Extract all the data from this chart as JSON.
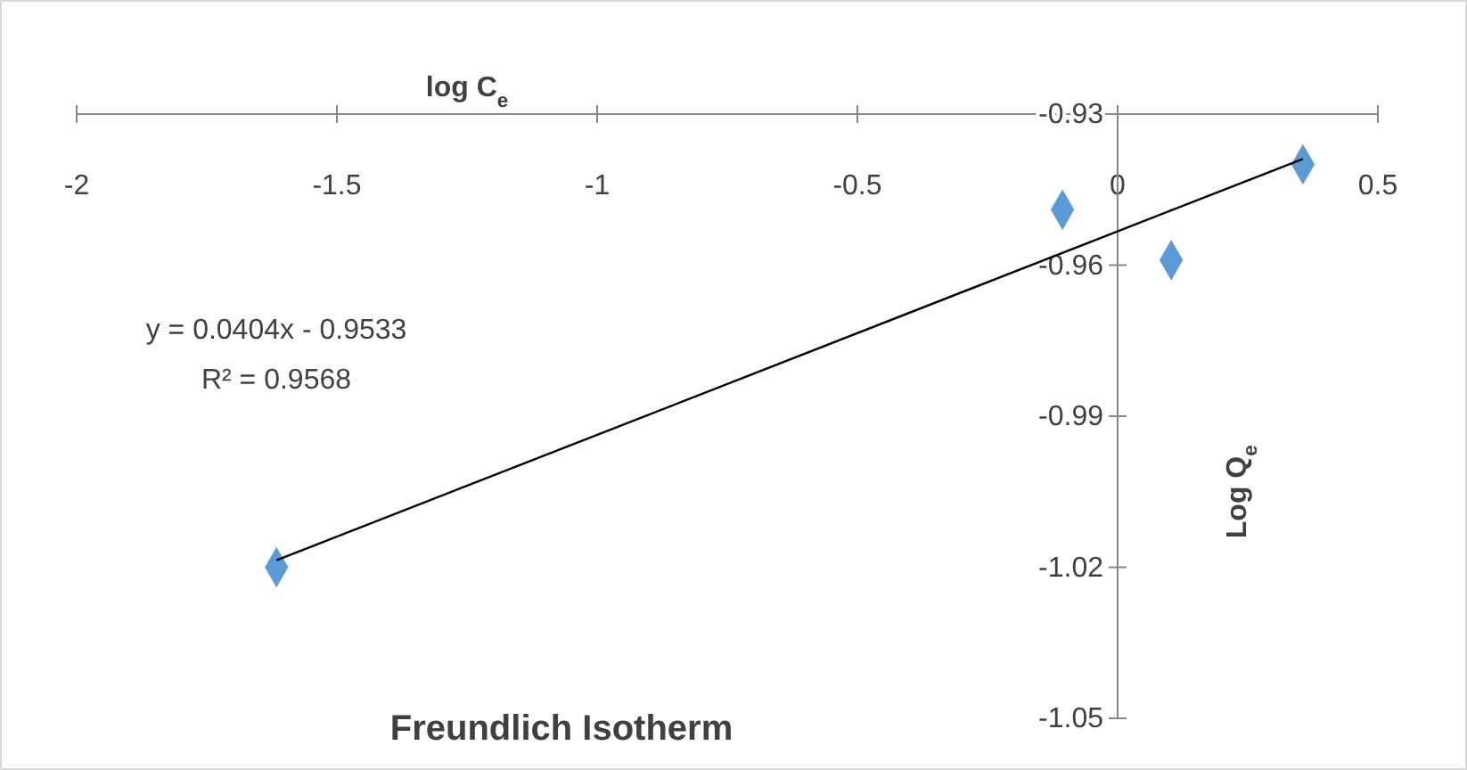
{
  "chart_data": {
    "type": "scatter",
    "title": "Freundlich Isotherm",
    "xlabel": "log C$_{e}$",
    "ylabel": "Log Q$_{e}$",
    "x": [
      -1.616,
      -0.106,
      0.103,
      0.356
    ],
    "series": [
      {
        "color": "#5b9bd5",
        "values": [
          -1.02,
          -0.949,
          -0.959,
          -0.94
        ],
        "marker": "diamond"
      },
      {
        "type": "line",
        "color": "#000000",
        "x": [
          -1.616,
          0.356
        ],
        "values": [
          -1.0186,
          -0.9389
        ],
        "marker": "none"
      }
    ],
    "annotations": [
      "y = 0.0404x - 0.9533",
      "R² = 0.9568"
    ],
    "xlim": [
      -2,
      0.5
    ],
    "xticks": [
      -2,
      -1.5,
      -1,
      -0.5,
      0,
      0.5
    ],
    "ylim": [
      -1.05,
      -0.93
    ],
    "yticks": [
      -0.93,
      -0.96,
      -0.99,
      -1.02,
      -1.05
    ],
    "grid": false
  }
}
